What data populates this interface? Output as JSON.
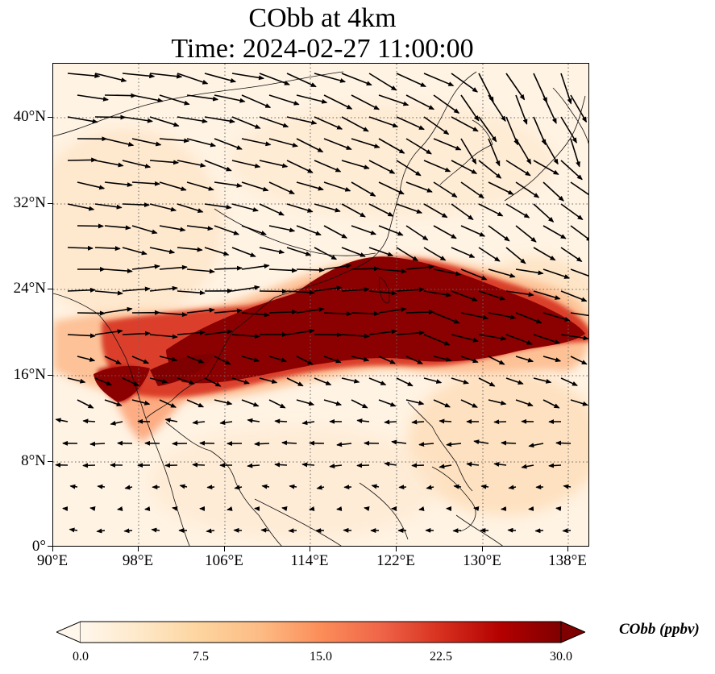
{
  "title": {
    "line1": "CObb at 4km",
    "line2": "Time: 2024-02-27 11:00:00"
  },
  "axes": {
    "lat_ticks": [
      "40°N",
      "32°N",
      "24°N",
      "16°N",
      "8°N",
      "0°"
    ],
    "lon_ticks": [
      "90°E",
      "98°E",
      "106°E",
      "114°E",
      "122°E",
      "130°E",
      "138°E"
    ],
    "lat_values": [
      40,
      32,
      24,
      16,
      8,
      0
    ],
    "lon_values": [
      90,
      98,
      106,
      114,
      122,
      130,
      138
    ],
    "lon_range": [
      90,
      140
    ],
    "lat_range": [
      0,
      45
    ],
    "gridlines": "dotted"
  },
  "colorbar": {
    "title": "CObb (ppbv)",
    "tick_labels": [
      "0.0",
      "7.5",
      "15.0",
      "22.5",
      "30.0"
    ],
    "tick_values": [
      0,
      7.5,
      15,
      22.5,
      30
    ],
    "range": [
      0,
      30
    ],
    "extend": "both",
    "colormap": "OrRd",
    "colors": [
      "#fff7ec",
      "#fee8c8",
      "#fdd49e",
      "#fdbb84",
      "#fc8d59",
      "#ef6548",
      "#d7301f",
      "#b30000",
      "#7f0000"
    ]
  },
  "map_layers": [
    "coastlines",
    "country-borders",
    "wind-vectors",
    "CObb-concentration-field"
  ]
}
